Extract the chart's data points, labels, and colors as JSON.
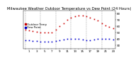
{
  "title": "Milwaukee Weather Outdoor Temperature vs Dew Point (24 Hours)",
  "temp_color": "#cc0000",
  "dew_color": "#0000cc",
  "grid_color": "#999999",
  "bg_color": "#ffffff",
  "hours": [
    0,
    1,
    2,
    3,
    4,
    5,
    6,
    7,
    8,
    9,
    10,
    11,
    12,
    13,
    14,
    15,
    16,
    17,
    18,
    19,
    20,
    21,
    22,
    23
  ],
  "temperature": [
    55,
    54,
    53,
    52,
    51,
    50,
    50,
    51,
    55,
    60,
    65,
    70,
    74,
    76,
    77,
    77,
    76,
    74,
    72,
    69,
    65,
    62,
    59,
    57
  ],
  "dew_point": [
    38,
    38,
    37,
    37,
    36,
    36,
    36,
    36,
    37,
    38,
    39,
    40,
    41,
    41,
    40,
    39,
    38,
    38,
    39,
    40,
    40,
    41,
    40,
    39
  ],
  "ylim": [
    25,
    85
  ],
  "yticks": [
    30,
    40,
    50,
    60,
    70,
    80
  ],
  "title_fontsize": 3.8,
  "tick_fontsize": 3.0,
  "legend_fontsize": 2.8,
  "marker_size": 1.2,
  "grid_linewidth": 0.35,
  "spine_linewidth": 0.3,
  "legend_labels": [
    "Outdoor Temp",
    "Dew Point"
  ]
}
